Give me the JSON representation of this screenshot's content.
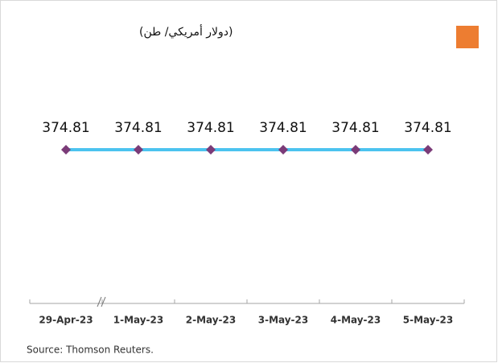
{
  "chart_data": {
    "type": "line",
    "title": "(دولار أمريكي/ طن)",
    "categories": [
      "29-Apr-23",
      "1-May-23",
      "2-May-23",
      "3-May-23",
      "4-May-23",
      "5-May-23"
    ],
    "series": [
      {
        "name": null,
        "color": "#4cc3ef",
        "marker_color": "#7b3b78",
        "values": [
          374.81,
          374.81,
          374.81,
          374.81,
          374.81,
          374.81
        ]
      }
    ],
    "source": "Source: Thomson Reuters."
  }
}
